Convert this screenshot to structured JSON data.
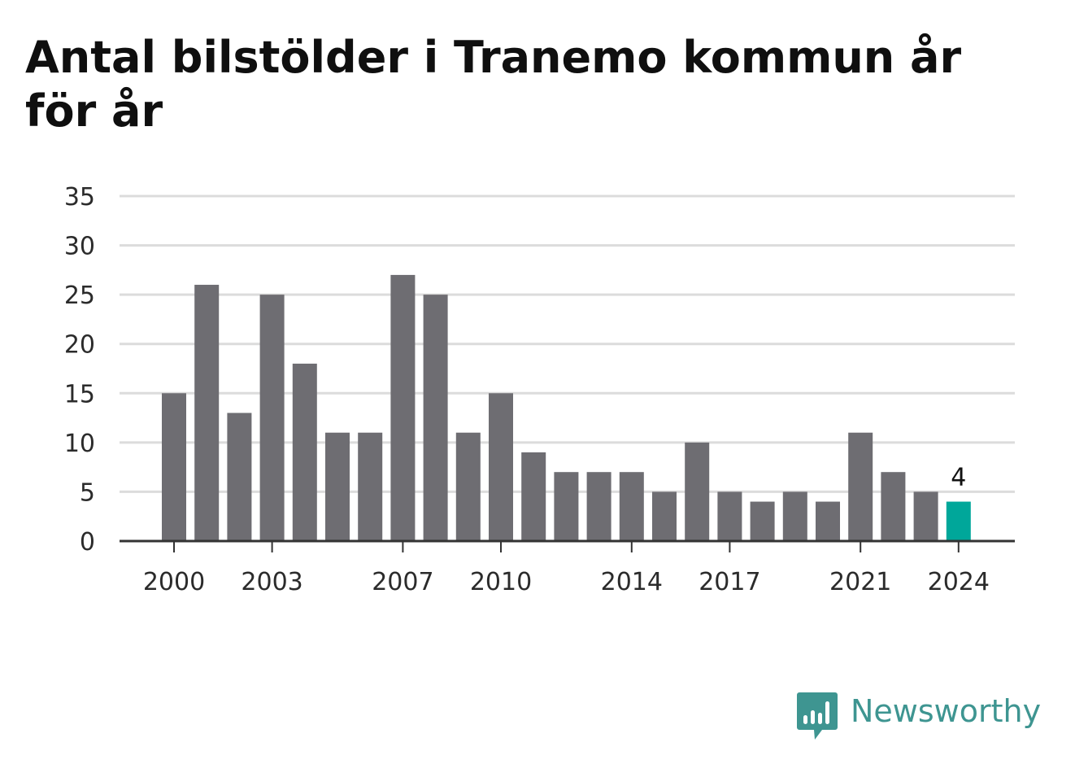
{
  "title": "Antal bilstölder i Tranemo kommun år för år",
  "brand": {
    "name": "Newsworthy",
    "icon": "bar-chart-speech-bubble-icon",
    "color": "#3e9591"
  },
  "colors": {
    "bar": "#6e6d72",
    "highlight": "#00a79a",
    "grid": "#dcdcdc",
    "axis": "#333333"
  },
  "chart_data": {
    "type": "bar",
    "title": "Antal bilstölder i Tranemo kommun år för år",
    "xlabel": "",
    "ylabel": "",
    "categories": [
      "2000",
      "2001",
      "2002",
      "2003",
      "2004",
      "2005",
      "2006",
      "2007",
      "2008",
      "2009",
      "2010",
      "2011",
      "2012",
      "2013",
      "2014",
      "2015",
      "2016",
      "2017",
      "2018",
      "2019",
      "2020",
      "2021",
      "2022",
      "2023",
      "2024"
    ],
    "values": [
      15,
      26,
      13,
      25,
      18,
      11,
      11,
      27,
      25,
      11,
      15,
      9,
      7,
      7,
      7,
      5,
      10,
      5,
      4,
      5,
      4,
      11,
      7,
      5,
      4
    ],
    "ylim": [
      0,
      35
    ],
    "yticks": [
      "0",
      "5",
      "10",
      "15",
      "20",
      "25",
      "30",
      "35"
    ],
    "xtick_labels": [
      "2000",
      "2003",
      "2007",
      "2010",
      "2014",
      "2017",
      "2021",
      "2024"
    ],
    "highlight_category": "2024",
    "highlight_label": "4",
    "grid": true,
    "legend": "none"
  }
}
